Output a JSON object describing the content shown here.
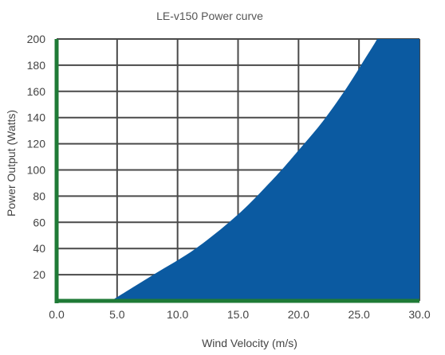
{
  "chart_data": {
    "type": "area",
    "title": "LE-v150 Power curve",
    "xlabel": "Wind Velocity (m/s)",
    "ylabel": "Power Output (Watts)",
    "xlim": [
      0,
      30
    ],
    "ylim": [
      0,
      200
    ],
    "x_ticks": [
      0,
      5,
      10,
      15,
      20,
      25,
      30
    ],
    "x_tick_labels": [
      "0.0",
      "5.0",
      "10.0",
      "15.0",
      "20.0",
      "25.0",
      "30.0"
    ],
    "y_ticks": [
      20,
      40,
      60,
      80,
      100,
      120,
      140,
      160,
      180,
      200
    ],
    "y_tick_labels": [
      "20",
      "40",
      "60",
      "80",
      "100",
      "120",
      "140",
      "160",
      "180",
      "200"
    ],
    "grid": true,
    "series": [
      {
        "x": [
          4.5,
          8,
          11.5,
          15,
          18,
          20,
          22,
          24,
          25.5,
          26.5,
          27
        ],
        "y": [
          0,
          20,
          40,
          66,
          94,
          115,
          137,
          163,
          185,
          200,
          210
        ]
      }
    ],
    "colors": {
      "fill": "#0b5aa1",
      "axis": "#1f7a36",
      "grid": "#4a4a4a",
      "title": "#555555",
      "labels": "#444444"
    }
  }
}
